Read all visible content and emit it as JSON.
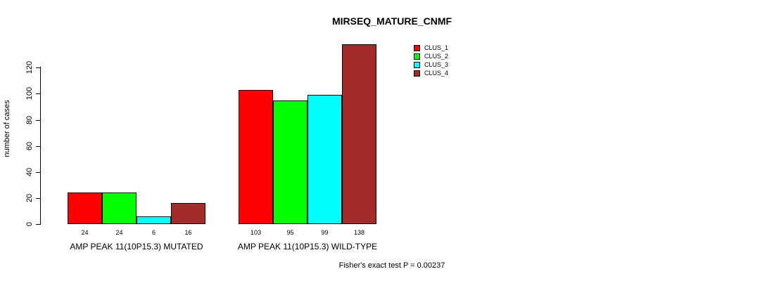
{
  "title": "MIRSEQ_MATURE_CNMF",
  "y_axis": {
    "label": "number of cases",
    "ticks": [
      0,
      20,
      40,
      60,
      80,
      100,
      120
    ]
  },
  "footer": "Fisher's exact test P = 0.00237",
  "legend": {
    "items": [
      {
        "label": "CLUS_1",
        "color": "#ff0000"
      },
      {
        "label": "CLUS_2",
        "color": "#00ff00"
      },
      {
        "label": "CLUS_3",
        "color": "#00ffff"
      },
      {
        "label": "CLUS_4",
        "color": "#a52a2a"
      }
    ]
  },
  "chart_data": {
    "type": "bar",
    "title": "MIRSEQ_MATURE_CNMF",
    "ylabel": "number of cases",
    "xlabel": "",
    "ylim": [
      0,
      140
    ],
    "yticks": [
      0,
      20,
      40,
      60,
      80,
      100,
      120
    ],
    "grid": false,
    "legend_position": "top-right",
    "bar_value_labels": true,
    "categories": [
      "AMP PEAK 11(10P15.3) MUTATED",
      "AMP PEAK 11(10P15.3) WILD-TYPE"
    ],
    "series": [
      {
        "name": "CLUS_1",
        "color": "#ff0000",
        "values": [
          24,
          103
        ]
      },
      {
        "name": "CLUS_2",
        "color": "#00ff00",
        "values": [
          24,
          95
        ]
      },
      {
        "name": "CLUS_3",
        "color": "#00ffff",
        "values": [
          6,
          99
        ]
      },
      {
        "name": "CLUS_4",
        "color": "#a52a2a",
        "values": [
          16,
          138
        ]
      }
    ],
    "annotation": "Fisher's exact test P = 0.00237"
  }
}
